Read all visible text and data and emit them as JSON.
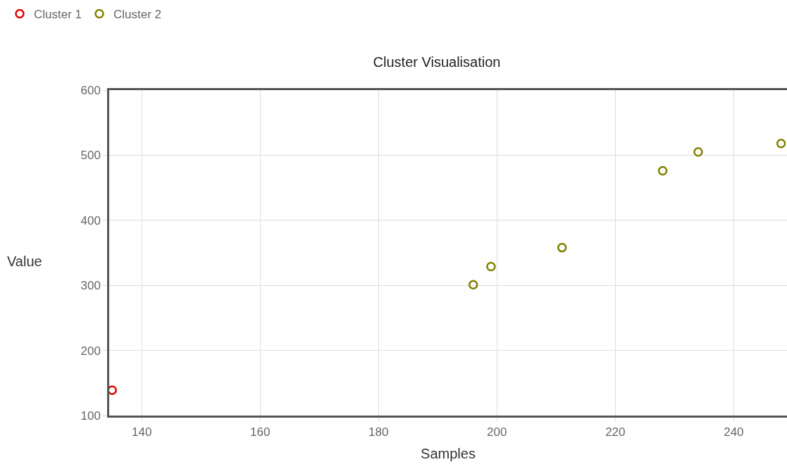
{
  "chart_data": {
    "type": "scatter",
    "title": "Cluster Visualisation",
    "xlabel": "Samples",
    "ylabel": "Value",
    "series": [
      {
        "name": "Cluster 1",
        "color": "#e00000",
        "x": [
          135
        ],
        "values": [
          139
        ]
      },
      {
        "name": "Cluster 2",
        "color": "#808000",
        "x": [
          196,
          199,
          211,
          228,
          234,
          248
        ],
        "values": [
          301,
          329,
          358,
          476,
          505,
          518
        ]
      }
    ],
    "xlim": [
      134.5,
      249
    ],
    "xticks": [
      140,
      160,
      180,
      200,
      220,
      240
    ],
    "ylim": [
      100,
      600
    ],
    "yticks": [
      100,
      200,
      300,
      400,
      500,
      600
    ],
    "grid": true,
    "legend": "top left",
    "marker": "circle"
  }
}
